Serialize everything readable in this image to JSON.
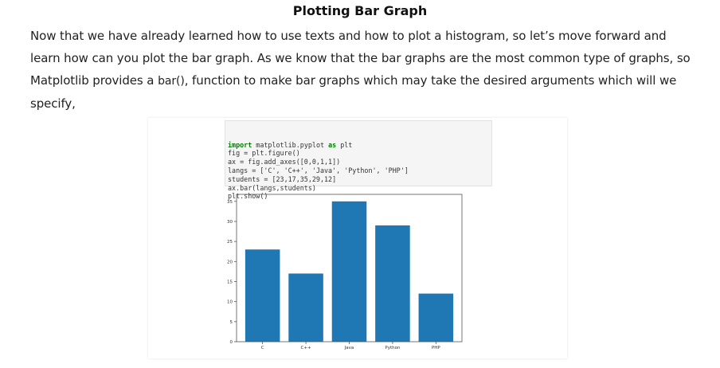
{
  "heading": "Plotting Bar Graph",
  "paragraph": {
    "before_code": "Now that we have already learned how to use texts and how to plot a histogram, so let’s move forward and learn how can you plot the bar graph. As we know that the bar graphs are the most common type of graphs, so Matplotlib provides a ",
    "code": "bar()",
    "after_code": ", function to make bar graphs which may take the desired arguments which will we specify,"
  },
  "code_cell": {
    "lines": [
      "import matplotlib.pyplot as plt",
      "fig = plt.figure()",
      "ax = fig.add_axes([0,0,1,1])",
      "langs = ['C', 'C++', 'Java', 'Python', 'PHP']",
      "students = [23,17,35,29,12]",
      "ax.bar(langs,students)",
      "plt.show()"
    ]
  },
  "chart_data": {
    "type": "bar",
    "categories": [
      "C",
      "C++",
      "Java",
      "Python",
      "PHP"
    ],
    "values": [
      23,
      17,
      35,
      29,
      12
    ],
    "title": "",
    "xlabel": "",
    "ylabel": "",
    "ylim": [
      0,
      36.75
    ],
    "yticks": [
      0,
      5,
      10,
      15,
      20,
      25,
      30,
      35
    ],
    "bar_color": "#1f77b4",
    "grid": false
  }
}
